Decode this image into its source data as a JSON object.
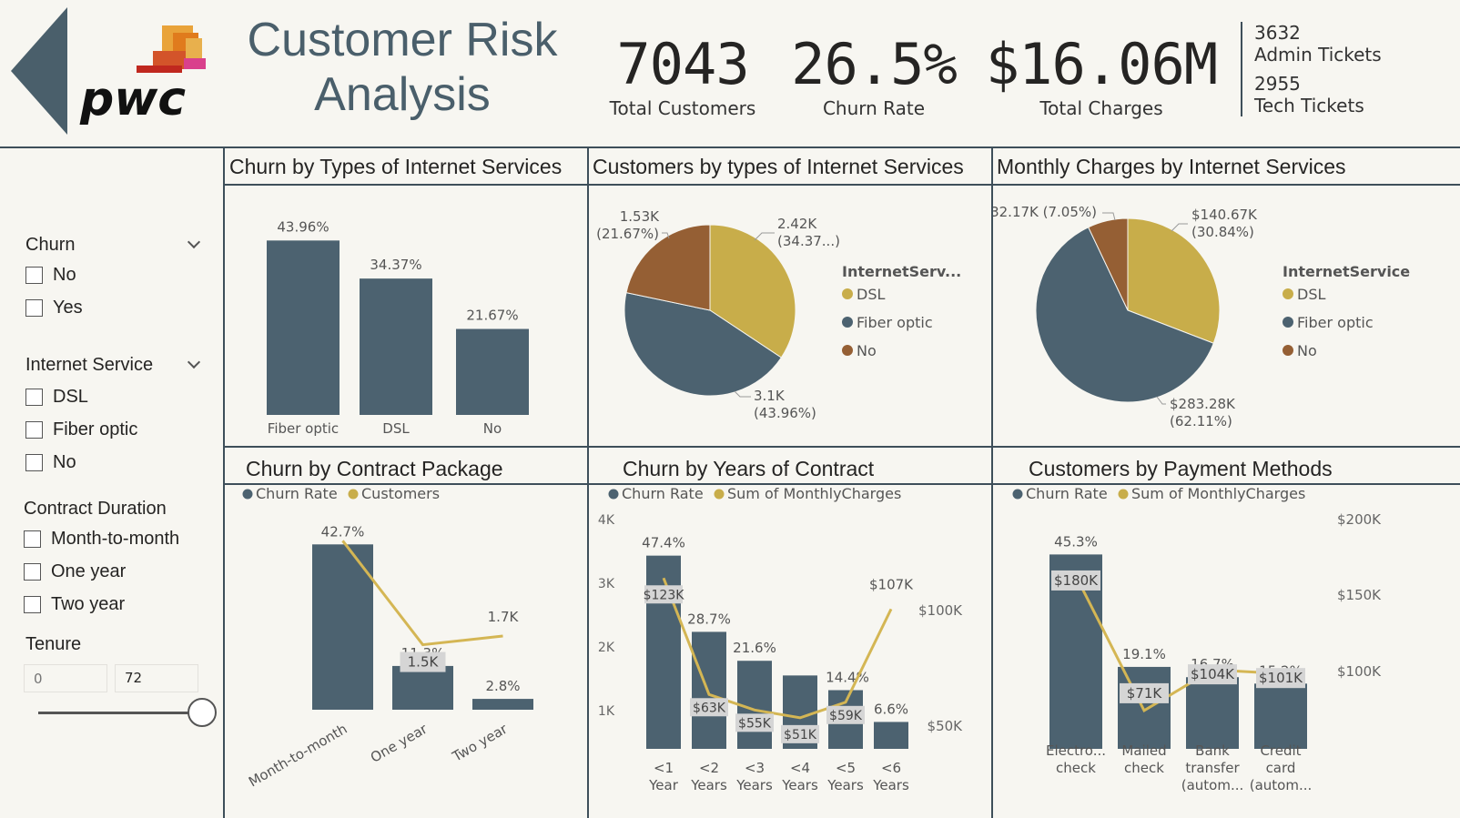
{
  "header": {
    "title_line1": "Customer Risk",
    "title_line2": "Analysis",
    "logo_text": "pwc",
    "back_icon": "left-triangle-icon"
  },
  "kpis": [
    {
      "value": "7043",
      "label": "Total Customers"
    },
    {
      "value": "26.5%",
      "label": "Churn Rate"
    },
    {
      "value": "$16.06M",
      "label": "Total Charges"
    }
  ],
  "tickets": {
    "admin_value": "3632",
    "admin_label": "Admin Tickets",
    "tech_value": "2955",
    "tech_label": "Tech Tickets"
  },
  "filters": {
    "churn": {
      "title": "Churn",
      "options": [
        "No",
        "Yes"
      ]
    },
    "internet": {
      "title": "Internet Service",
      "options": [
        "DSL",
        "Fiber optic",
        "No"
      ]
    },
    "contract": {
      "title": "Contract Duration",
      "options": [
        "Month-to-month",
        "One year",
        "Two year"
      ]
    },
    "tenure": {
      "title": "Tenure",
      "min_placeholder": "0",
      "max_value": "72",
      "slider_fraction": 1.0
    }
  },
  "colors": {
    "slate": "#4c6270",
    "gold": "#c8ad4a",
    "brown": "#955f34",
    "line": "#d4b654"
  },
  "panels": {
    "p1": "Churn by Types of Internet Services",
    "p2": "Customers by types of Internet Services",
    "p3": "Monthly Charges by Internet Services",
    "p4": "Churn by Contract Package",
    "p5": "Churn by Years of Contract",
    "p6": "Customers by Payment Methods"
  },
  "chart_data": [
    {
      "id": "churn_internet",
      "type": "bar",
      "title": "Churn by Types of Internet Services",
      "categories": [
        "Fiber optic",
        "DSL",
        "No"
      ],
      "values": [
        43.96,
        34.37,
        21.67
      ],
      "labels": [
        "43.96%",
        "34.37%",
        "21.67%"
      ],
      "ylim": [
        0,
        50
      ]
    },
    {
      "id": "customers_internet",
      "type": "pie",
      "title": "Customers by types of Internet Services",
      "legend_title": "InternetServ...",
      "slices": [
        {
          "name": "DSL",
          "value": 2.42,
          "label1": "2.42K",
          "label2": "(34.37...)"
        },
        {
          "name": "Fiber optic",
          "value": 3.1,
          "label1": "3.1K",
          "label2": "(43.96%)"
        },
        {
          "name": "No",
          "value": 1.53,
          "label1": "1.53K",
          "label2": "(21.67%)"
        }
      ]
    },
    {
      "id": "charges_internet",
      "type": "pie",
      "title": "Monthly Charges by Internet Services",
      "legend_title": "InternetService",
      "slices": [
        {
          "name": "DSL",
          "value": 140.67,
          "label1": "$140.67K",
          "label2": "(30.84%)"
        },
        {
          "name": "Fiber optic",
          "value": 283.28,
          "label1": "$283.28K",
          "label2": "(62.11%)"
        },
        {
          "name": "No",
          "value": 32.17,
          "label1": "$32.17K (7.05%)",
          "label2": ""
        }
      ]
    },
    {
      "id": "contract_package",
      "type": "bar",
      "title": "Churn by Contract Package",
      "legend": [
        "Churn Rate",
        "Customers"
      ],
      "categories": [
        "Month-to-month",
        "One year",
        "Two year"
      ],
      "bar_values": [
        42.7,
        11.3,
        2.8
      ],
      "bar_labels": [
        "42.7%",
        "11.3%",
        "2.8%"
      ],
      "line_values": [
        3.9,
        1.5,
        1.7
      ],
      "line_labels": [
        "",
        "1.5K",
        "1.7K"
      ],
      "bar_ylim": [
        0,
        47
      ],
      "line_ylim": [
        0,
        4.2
      ]
    },
    {
      "id": "years_contract",
      "type": "bar",
      "title": "Churn by Years of Contract",
      "legend": [
        "Churn Rate",
        "Sum of MonthlyCharges"
      ],
      "categories": [
        [
          "<1",
          "Year"
        ],
        [
          "<2",
          "Years"
        ],
        [
          "<3",
          "Years"
        ],
        [
          "<4",
          "Years"
        ],
        [
          "<5",
          "Years"
        ],
        [
          "<6",
          "Years"
        ]
      ],
      "bar_values": [
        47.4,
        28.7,
        21.6,
        18.0,
        14.4,
        6.6
      ],
      "bar_labels": [
        "47.4%",
        "28.7%",
        "21.6%",
        "",
        "14.4%",
        "6.6%"
      ],
      "bar_ylim": [
        0,
        50
      ],
      "left_ticks": [
        "4K",
        "3K",
        "2K",
        "1K"
      ],
      "left_ylim": [
        0,
        5
      ],
      "line_values": [
        123,
        63,
        55,
        51,
        59,
        107
      ],
      "line_labels": [
        "$123K",
        "$63K",
        "$55K",
        "$51K",
        "$59K",
        "$107K"
      ],
      "right_ticks": [
        "$100K",
        "$50K"
      ],
      "line_ylim": [
        35,
        140
      ]
    },
    {
      "id": "payment_methods",
      "type": "bar",
      "title": "Customers by Payment Methods",
      "legend": [
        "Churn Rate",
        "Sum of MonthlyCharges"
      ],
      "categories": [
        [
          "Electro...",
          "check"
        ],
        [
          "Mailed",
          "check"
        ],
        [
          "Bank",
          "transfer",
          "(autom..."
        ],
        [
          "Credit",
          "card",
          "(autom..."
        ]
      ],
      "bar_values": [
        45.3,
        19.1,
        16.7,
        15.2
      ],
      "bar_labels": [
        "45.3%",
        "19.1%",
        "16.7%",
        "15.2%"
      ],
      "bar_ylim": [
        0,
        47.5
      ],
      "line_values": [
        180,
        71,
        104,
        101
      ],
      "line_labels": [
        "$180K",
        "$71K",
        "$104K",
        "$101K"
      ],
      "right_ticks": [
        "$200K",
        "$150K",
        "$100K"
      ],
      "line_ylim": [
        40,
        205
      ]
    }
  ]
}
